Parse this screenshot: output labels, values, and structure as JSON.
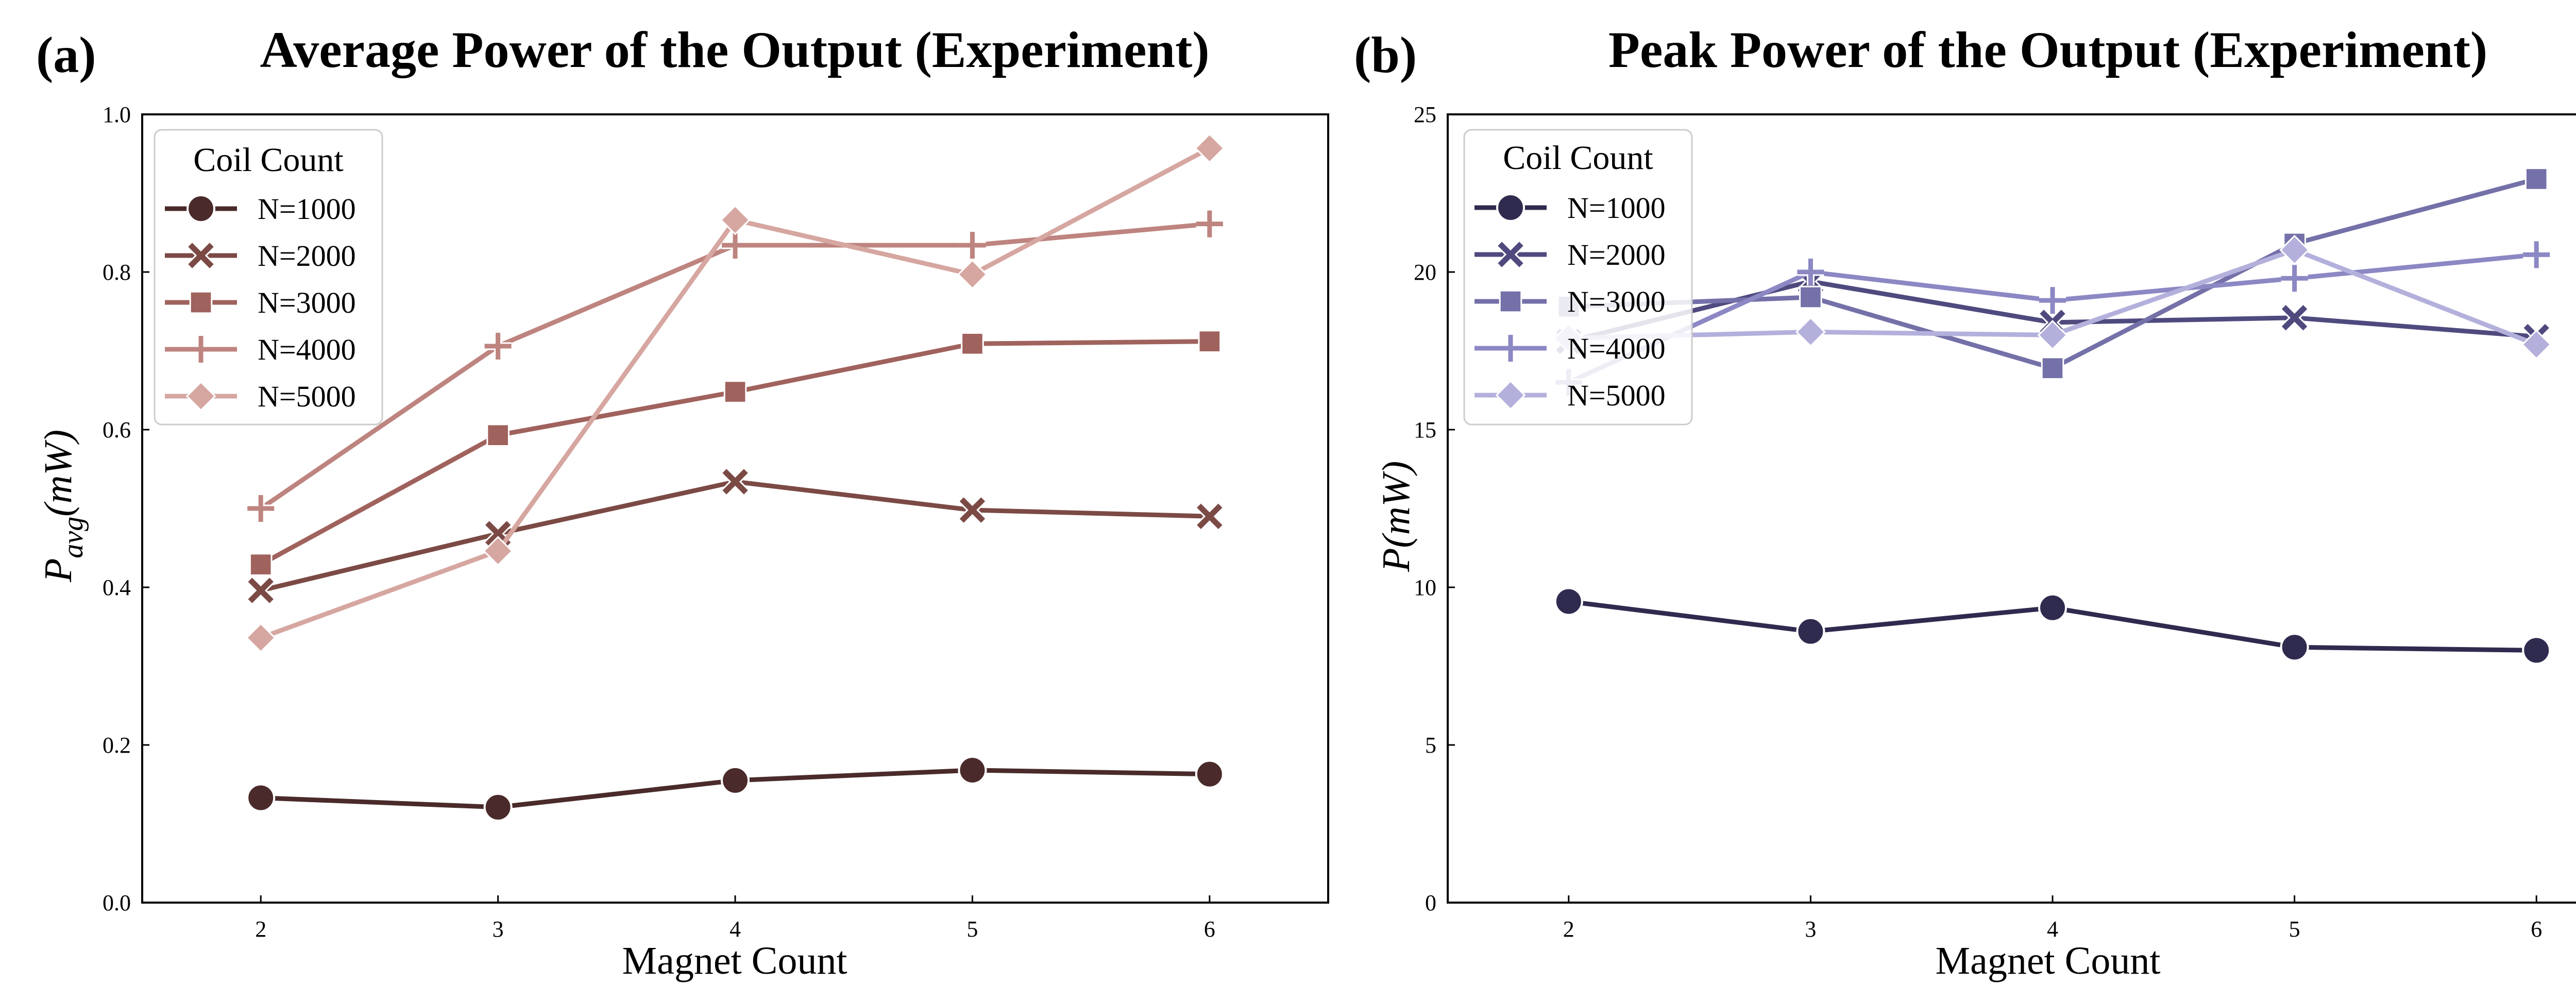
{
  "chart_data": [
    {
      "type": "line",
      "panel_label": "(a)",
      "title": "Average Power of the Output (Experiment)",
      "xlabel": "Magnet Count",
      "ylabel_main": "P",
      "ylabel_sub": "avg",
      "ylabel_units": "(mW)",
      "x": [
        2,
        3,
        4,
        5,
        6
      ],
      "xlim": [
        1.5,
        6.5
      ],
      "ylim": [
        0,
        1.0
      ],
      "xticks": [
        "2",
        "3",
        "4",
        "5",
        "6"
      ],
      "yticks": [
        "0.0",
        "0.2",
        "0.4",
        "0.6",
        "0.8",
        "1.0"
      ],
      "grid": false,
      "legend": {
        "title": "Coil Count",
        "position": "top-left"
      },
      "series": [
        {
          "name": "N=1000",
          "marker": "circle",
          "color": "#4a2a2a",
          "values": [
            0.133,
            0.121,
            0.155,
            0.168,
            0.163
          ]
        },
        {
          "name": "N=2000",
          "marker": "x",
          "color": "#7b4a45",
          "values": [
            0.396,
            0.468,
            0.534,
            0.498,
            0.49
          ]
        },
        {
          "name": "N=3000",
          "marker": "square",
          "color": "#a0625d",
          "values": [
            0.429,
            0.593,
            0.648,
            0.709,
            0.712
          ]
        },
        {
          "name": "N=4000",
          "marker": "plus",
          "color": "#be847f",
          "values": [
            0.5,
            0.706,
            0.834,
            0.834,
            0.861
          ]
        },
        {
          "name": "N=5000",
          "marker": "diamond",
          "color": "#d6a6a0",
          "values": [
            0.336,
            0.446,
            0.866,
            0.797,
            0.957
          ]
        }
      ]
    },
    {
      "type": "line",
      "panel_label": "(b)",
      "title": "Peak Power of the Output (Experiment)",
      "xlabel": "Magnet Count",
      "ylabel_main": "P",
      "ylabel_sub": "",
      "ylabel_units": "(mW)",
      "x": [
        2,
        3,
        4,
        5,
        6
      ],
      "xlim": [
        1.5,
        6.5
      ],
      "ylim": [
        0,
        25
      ],
      "xticks": [
        "2",
        "3",
        "4",
        "5",
        "6"
      ],
      "yticks": [
        "0",
        "5",
        "10",
        "15",
        "20",
        "25"
      ],
      "grid": false,
      "legend": {
        "title": "Coil Count",
        "position": "top-left"
      },
      "series": [
        {
          "name": "N=1000",
          "marker": "circle",
          "color": "#2f2b4f",
          "values": [
            9.55,
            8.6,
            9.35,
            8.1,
            8.0
          ]
        },
        {
          "name": "N=2000",
          "marker": "x",
          "color": "#4f4a7e",
          "values": [
            17.8,
            19.7,
            18.4,
            18.55,
            17.95
          ]
        },
        {
          "name": "N=3000",
          "marker": "square",
          "color": "#7470a8",
          "values": [
            18.9,
            19.2,
            16.95,
            20.9,
            22.95
          ]
        },
        {
          "name": "N=4000",
          "marker": "plus",
          "color": "#8c88c4",
          "values": [
            16.5,
            20.0,
            19.1,
            19.8,
            20.55
          ]
        },
        {
          "name": "N=5000",
          "marker": "diamond",
          "color": "#b4b0dc",
          "values": [
            17.9,
            18.1,
            18.0,
            20.7,
            17.7
          ]
        }
      ]
    }
  ]
}
